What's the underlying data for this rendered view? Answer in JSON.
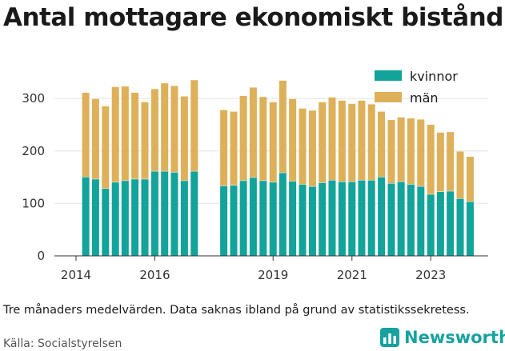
{
  "title": "Antal mottagare ekonomiskt bistånd",
  "note": "Tre månaders medelvärden. Data saknas ibland på grund av statistikssekretess.",
  "source": "Källa: Socialstyrelsen",
  "brand": {
    "name": "Newsworthy",
    "icon": "bar-chart-logo-icon"
  },
  "colors": {
    "kvinnor": "#12a39b",
    "man": "#deb05a",
    "axis": "#333333",
    "grid": "#e6e6e6"
  },
  "chart_data": {
    "type": "bar",
    "stacked": true,
    "title": "Antal mottagare ekonomiskt bistånd",
    "xlabel": "",
    "ylabel": "",
    "ylim": [
      0,
      350
    ],
    "yticks": [
      0,
      100,
      200,
      300
    ],
    "xticks": [
      "2014",
      "2016",
      "2019",
      "2021",
      "2023"
    ],
    "grid": true,
    "legend": "top-right",
    "series": [
      {
        "name": "kvinnor",
        "values": [
          150,
          146,
          128,
          140,
          143,
          146,
          146,
          161,
          161,
          159,
          143,
          161,
          133,
          134,
          143,
          149,
          143,
          140,
          158,
          142,
          136,
          132,
          139,
          144,
          141,
          141,
          144,
          144,
          150,
          138,
          141,
          136,
          132,
          117,
          122,
          123,
          109,
          103
        ]
      },
      {
        "name": "män",
        "values": [
          161,
          153,
          157,
          182,
          180,
          165,
          147,
          157,
          168,
          165,
          161,
          174,
          145,
          141,
          162,
          172,
          160,
          153,
          176,
          157,
          145,
          145,
          154,
          158,
          155,
          149,
          152,
          145,
          125,
          121,
          123,
          126,
          128,
          133,
          113,
          113,
          90,
          86
        ]
      }
    ],
    "dates": [
      "2014-04",
      "2014-07",
      "2014-10",
      "2015-01",
      "2015-04",
      "2015-07",
      "2015-10",
      "2016-01",
      "2016-04",
      "2016-07",
      "2016-10",
      "2017-01",
      "2017-10",
      "2018-01",
      "2018-04",
      "2018-07",
      "2018-10",
      "2019-01",
      "2019-04",
      "2019-07",
      "2019-10",
      "2020-01",
      "2020-04",
      "2020-07",
      "2020-10",
      "2021-01",
      "2021-04",
      "2021-07",
      "2021-10",
      "2022-01",
      "2022-04",
      "2022-07",
      "2022-10",
      "2023-01",
      "2023-04",
      "2023-07",
      "2023-10",
      "2024-01"
    ]
  }
}
